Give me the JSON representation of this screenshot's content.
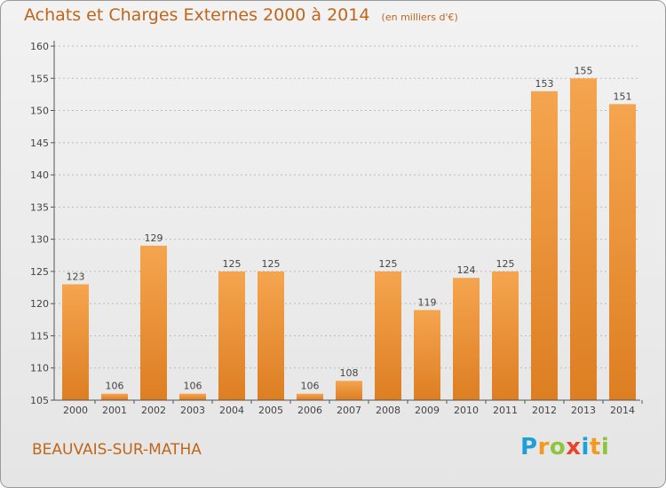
{
  "header": {
    "title": "Achats et Charges Externes 2000 à 2014",
    "subtitle": "(en milliers d'€)"
  },
  "footer": {
    "commune": "BEAUVAIS-SUR-MATHA",
    "brand": "Proxiti",
    "brand_letters": [
      {
        "char": "P",
        "color": "#1f9fd8"
      },
      {
        "char": "r",
        "color": "#f39a1e"
      },
      {
        "char": "o",
        "color": "#8cc63f"
      },
      {
        "char": "x",
        "color": "#e8452c"
      },
      {
        "char": "i",
        "color": "#1f9fd8"
      },
      {
        "char": "t",
        "color": "#f39a1e"
      },
      {
        "char": "i",
        "color": "#8cc63f"
      }
    ]
  },
  "colors": {
    "bar_light": "#f5a54f",
    "bar_dark": "#dd7e22",
    "text": "#c0661b",
    "axis": "#555555",
    "grid": "#bbbbbb"
  },
  "chart_data": {
    "type": "bar",
    "title": "Achats et Charges Externes 2000 à 2014",
    "subtitle": "(en milliers d'€)",
    "categories": [
      "2000",
      "2001",
      "2002",
      "2003",
      "2004",
      "2005",
      "2006",
      "2007",
      "2008",
      "2009",
      "2010",
      "2011",
      "2012",
      "2013",
      "2014"
    ],
    "values": [
      123,
      106,
      129,
      106,
      125,
      125,
      106,
      108,
      125,
      119,
      124,
      125,
      153,
      155,
      151
    ],
    "ylim": [
      105,
      160
    ],
    "yticks": [
      105,
      110,
      115,
      120,
      125,
      130,
      135,
      140,
      145,
      150,
      155,
      160
    ],
    "grid": true,
    "legend": "none"
  }
}
